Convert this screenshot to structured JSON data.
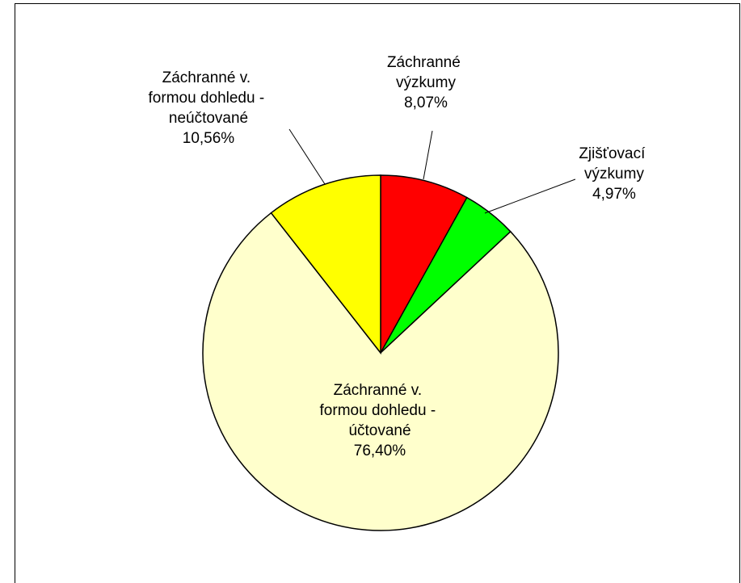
{
  "chart_data": {
    "type": "pie",
    "categories": [
      "Záchranné výzkumy",
      "Zjišťovací výzkumy",
      "Záchranné v. formou dohledu - účtované",
      "Záchranné v. formou dohledu - neúčtované"
    ],
    "values": [
      8.07,
      4.97,
      76.4,
      10.56
    ],
    "value_labels": [
      "8,07%",
      "4,97%",
      "76,40%",
      "10,56%"
    ],
    "colors": [
      "#ff0000",
      "#00ff00",
      "#ffffcc",
      "#ffff00"
    ]
  }
}
